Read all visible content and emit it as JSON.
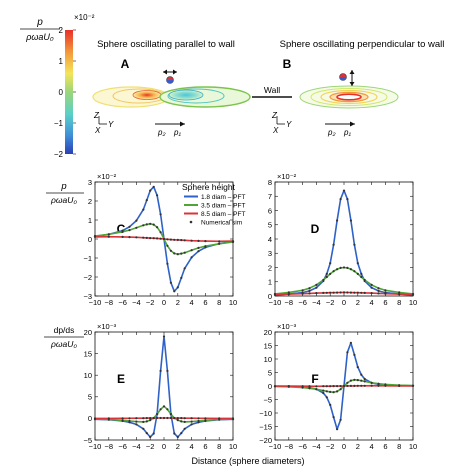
{
  "colorbar": {
    "label_num": "p",
    "label_den": "ρωaU₀",
    "exponent": "×10⁻²",
    "ticks": [
      "2",
      "1",
      "0",
      "−1",
      "−2"
    ],
    "tick_values": [
      2,
      1,
      0,
      -1,
      -2
    ]
  },
  "top_panels": {
    "A": {
      "letter": "A",
      "title": "Sphere oscillating parallel to wall"
    },
    "B": {
      "letter": "B",
      "title": "Sphere oscillating perpendicular to wall"
    },
    "wall_label": "Wall",
    "axes_letters": {
      "z": "Z",
      "y": "Y",
      "x": "X"
    },
    "p2": "p₂",
    "p1": "p₁"
  },
  "shared_xlabel": "Distance (sphere diameters)",
  "row_labels": {
    "row1": {
      "num": "p",
      "den": "ρωaU₀"
    },
    "row2": {
      "num": "dp/ds",
      "den": "ρωaU₀"
    }
  },
  "legend": {
    "title": "Sphere height",
    "items": [
      {
        "label": "1.8 diam – PFT",
        "color": "#2f62c9"
      },
      {
        "label": "3.5 diam – PFT",
        "color": "#4fa534"
      },
      {
        "label": "8.5 diam – PFT",
        "color": "#d9343a"
      },
      {
        "label": "Numerical sim",
        "color": "#333333"
      }
    ]
  },
  "colors": {
    "blue": "#2f62c9",
    "green": "#4fa534",
    "red": "#d9343a",
    "sim": "#333333"
  },
  "chart_data": [
    {
      "panel": "C",
      "type": "line",
      "exponent": "×10⁻²",
      "xlim": [
        -10,
        10
      ],
      "ylim": [
        -3,
        3
      ],
      "xticks": [
        -10,
        -8,
        -6,
        -4,
        -2,
        0,
        2,
        4,
        6,
        8,
        10
      ],
      "yticks": [
        -3,
        -2,
        -1,
        0,
        1,
        2,
        3
      ],
      "x": [
        -10,
        -8,
        -6,
        -5,
        -4,
        -3,
        -2.5,
        -2,
        -1.5,
        -1,
        -0.5,
        0,
        0.5,
        1,
        1.5,
        2,
        2.5,
        3,
        4,
        5,
        6,
        8,
        10
      ],
      "series": [
        {
          "color": "blue",
          "values": [
            0.14,
            0.24,
            0.44,
            0.64,
            0.97,
            1.55,
            2.05,
            2.55,
            2.75,
            2.3,
            1.3,
            0,
            -1.3,
            -2.3,
            -2.75,
            -2.55,
            -2.05,
            -1.55,
            -0.97,
            -0.64,
            -0.44,
            -0.24,
            -0.14
          ]
        },
        {
          "color": "green",
          "values": [
            0.16,
            0.25,
            0.38,
            0.47,
            0.59,
            0.72,
            0.77,
            0.8,
            0.76,
            0.62,
            0.36,
            0,
            -0.36,
            -0.62,
            -0.76,
            -0.8,
            -0.77,
            -0.72,
            -0.59,
            -0.47,
            -0.38,
            -0.25,
            -0.16
          ]
        },
        {
          "color": "red",
          "values": [
            0.11,
            0.12,
            0.11,
            0.1,
            0.09,
            0.07,
            0.06,
            0.05,
            0.04,
            0.03,
            0.015,
            0,
            -0.015,
            -0.03,
            -0.04,
            -0.05,
            -0.06,
            -0.07,
            -0.09,
            -0.1,
            -0.11,
            -0.12,
            -0.11
          ]
        }
      ]
    },
    {
      "panel": "D",
      "type": "line",
      "exponent": "×10⁻²",
      "xlim": [
        -10,
        10
      ],
      "ylim": [
        0,
        8
      ],
      "xticks": [
        -10,
        -8,
        -6,
        -4,
        -2,
        0,
        2,
        4,
        6,
        8,
        10
      ],
      "yticks": [
        0,
        1,
        2,
        3,
        4,
        5,
        6,
        7,
        8
      ],
      "x": [
        -10,
        -8,
        -6,
        -5,
        -4,
        -3,
        -2.5,
        -2,
        -1.5,
        -1,
        -0.5,
        0,
        0.5,
        1,
        1.5,
        2,
        2.5,
        3,
        4,
        5,
        6,
        8,
        10
      ],
      "series": [
        {
          "color": "blue",
          "values": [
            0.08,
            0.13,
            0.24,
            0.36,
            0.58,
            1.05,
            1.55,
            2.3,
            3.6,
            5.3,
            6.8,
            7.4,
            6.8,
            5.3,
            3.6,
            2.3,
            1.55,
            1.05,
            0.58,
            0.36,
            0.24,
            0.13,
            0.08
          ]
        },
        {
          "color": "green",
          "values": [
            0.15,
            0.25,
            0.4,
            0.55,
            0.78,
            1.12,
            1.33,
            1.55,
            1.74,
            1.88,
            1.97,
            2.0,
            1.97,
            1.88,
            1.74,
            1.55,
            1.33,
            1.12,
            0.78,
            0.55,
            0.4,
            0.25,
            0.15
          ]
        },
        {
          "color": "red",
          "values": [
            0.1,
            0.13,
            0.16,
            0.18,
            0.2,
            0.22,
            0.225,
            0.23,
            0.235,
            0.24,
            0.245,
            0.25,
            0.245,
            0.24,
            0.235,
            0.23,
            0.225,
            0.22,
            0.2,
            0.18,
            0.16,
            0.13,
            0.1
          ]
        }
      ]
    },
    {
      "panel": "E",
      "type": "line",
      "exponent": "×10⁻³",
      "xlim": [
        -10,
        10
      ],
      "ylim": [
        -5,
        20
      ],
      "xticks": [
        -10,
        -8,
        -6,
        -4,
        -2,
        0,
        2,
        4,
        6,
        8,
        10
      ],
      "yticks": [
        -5,
        0,
        5,
        10,
        15,
        20
      ],
      "x": [
        -10,
        -8,
        -6,
        -5,
        -4,
        -3,
        -2.5,
        -2,
        -1.5,
        -1,
        -0.5,
        0,
        0.5,
        1,
        1.5,
        2,
        2.5,
        3,
        4,
        5,
        6,
        8,
        10
      ],
      "series": [
        {
          "color": "blue",
          "values": [
            -0.2,
            -0.3,
            -0.6,
            -0.9,
            -1.4,
            -2.4,
            -3.4,
            -4.3,
            -3.5,
            1.0,
            11.0,
            19.0,
            11.0,
            1.0,
            -3.5,
            -4.3,
            -3.4,
            -2.4,
            -1.4,
            -0.9,
            -0.6,
            -0.3,
            -0.2
          ]
        },
        {
          "color": "green",
          "values": [
            -0.15,
            -0.25,
            -0.45,
            -0.6,
            -0.75,
            -0.8,
            -0.7,
            -0.4,
            0.1,
            1.0,
            2.1,
            2.8,
            2.1,
            1.0,
            0.1,
            -0.4,
            -0.7,
            -0.8,
            -0.75,
            -0.6,
            -0.45,
            -0.25,
            -0.15
          ]
        },
        {
          "color": "red",
          "values": [
            0.0,
            0.0,
            0.02,
            0.03,
            0.04,
            0.05,
            0.06,
            0.07,
            0.08,
            0.09,
            0.1,
            0.1,
            0.1,
            0.09,
            0.08,
            0.07,
            0.06,
            0.05,
            0.04,
            0.03,
            0.02,
            0.0,
            0.0
          ]
        }
      ]
    },
    {
      "panel": "F",
      "type": "line",
      "exponent": "×10⁻³",
      "xlim": [
        -10,
        10
      ],
      "ylim": [
        -20,
        20
      ],
      "xticks": [
        -10,
        -8,
        -6,
        -4,
        -2,
        0,
        2,
        4,
        6,
        8,
        10
      ],
      "yticks": [
        -20,
        -15,
        -10,
        -5,
        0,
        5,
        10,
        15,
        20
      ],
      "x": [
        -10,
        -8,
        -6,
        -5,
        -4,
        -3,
        -2.5,
        -2,
        -1.5,
        -1,
        -0.5,
        0,
        0.5,
        1,
        1.5,
        2,
        2.5,
        3,
        4,
        5,
        6,
        8,
        10
      ],
      "series": [
        {
          "color": "blue",
          "values": [
            -0.06,
            -0.14,
            -0.35,
            -0.6,
            -1.2,
            -2.6,
            -4.2,
            -7.0,
            -11.5,
            -16.0,
            -12.5,
            0,
            12.5,
            16.0,
            11.5,
            7.0,
            4.2,
            2.6,
            1.2,
            0.6,
            0.35,
            0.14,
            0.06
          ]
        },
        {
          "color": "green",
          "values": [
            -0.15,
            -0.3,
            -0.6,
            -0.85,
            -1.2,
            -1.7,
            -1.95,
            -2.2,
            -2.3,
            -2.0,
            -1.2,
            0,
            1.2,
            2.0,
            2.3,
            2.2,
            1.95,
            1.7,
            1.2,
            0.85,
            0.6,
            0.3,
            0.15
          ]
        },
        {
          "color": "red",
          "values": [
            -0.02,
            -0.05,
            -0.08,
            -0.09,
            -0.1,
            -0.09,
            -0.08,
            -0.07,
            -0.05,
            -0.04,
            -0.02,
            0,
            0.02,
            0.04,
            0.05,
            0.07,
            0.08,
            0.09,
            0.1,
            0.09,
            0.08,
            0.05,
            0.02
          ]
        }
      ]
    }
  ]
}
